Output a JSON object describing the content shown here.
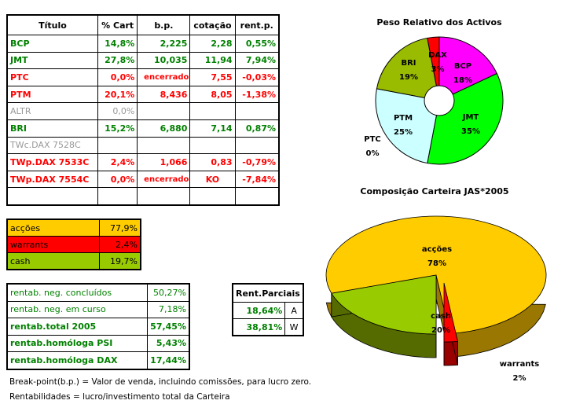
{
  "holdings": {
    "headers": [
      "Título",
      "% Cart",
      "b.p.",
      "cotação",
      "rent.p."
    ],
    "rows": [
      {
        "t": "BCP",
        "p": "14,8%",
        "bp": "2,225",
        "c": "2,28",
        "r": "0,55%",
        "color": "g"
      },
      {
        "t": "JMT",
        "p": "27,8%",
        "bp": "10,035",
        "c": "11,94",
        "r": "7,94%",
        "color": "g"
      },
      {
        "t": "PTC",
        "p": "0,0%",
        "bp": "encerrado",
        "c": "7,55",
        "r": "-0,03%",
        "color": "red"
      },
      {
        "t": "PTM",
        "p": "20,1%",
        "bp": "8,436",
        "c": "8,05",
        "r": "-1,38%",
        "color": "red"
      },
      {
        "t": "ALTR",
        "p": "0,0%",
        "bp": "",
        "c": "",
        "r": "",
        "color": "gr"
      },
      {
        "t": "BRI",
        "p": "15,2%",
        "bp": "6,880",
        "c": "7,14",
        "r": "0,87%",
        "color": "g"
      },
      {
        "t": "TWc.DAX 7528C",
        "p": "",
        "bp": "",
        "c": "",
        "r": "",
        "color": "gr"
      },
      {
        "t": "TWp.DAX 7533C",
        "p": "2,4%",
        "bp": "1,066",
        "c": "0,83",
        "r": "-0,79%",
        "color": "red"
      },
      {
        "t": "TWp.DAX 7554C",
        "p": "0,0%",
        "bp": "encerrado",
        "c": "KO",
        "r": "-7,84%",
        "color": "red"
      },
      {
        "t": "",
        "p": "",
        "bp": "",
        "c": "",
        "r": "",
        "color": "g"
      }
    ]
  },
  "allocation": [
    {
      "label": "acções",
      "value": "77,9%",
      "bg": "#ffcc00"
    },
    {
      "label": "warrants",
      "value": "2,4%",
      "bg": "#ff0000"
    },
    {
      "label": "cash",
      "value": "19,7%",
      "bg": "#99cc00"
    }
  ],
  "returns": [
    {
      "label": "rentab. neg. concluídos",
      "value": "50,27%",
      "bold": false
    },
    {
      "label": "rentab. neg. em curso",
      "value": "7,18%",
      "bold": false
    },
    {
      "label": "rentab.total 2005",
      "value": "57,45%",
      "bold": true
    },
    {
      "label": "rentab.homóloga PSI",
      "value": "5,43%",
      "bold": true
    },
    {
      "label": "rentab.homóloga DAX",
      "value": "17,44%",
      "bold": true
    }
  ],
  "partial": {
    "title": "Rent.Parciais",
    "rows": [
      {
        "value": "18,64%",
        "tag": "A"
      },
      {
        "value": "38,81%",
        "tag": "W"
      }
    ]
  },
  "notes": [
    "Break-point(b.p.) = Valor de venda, incluindo comissões, para lucro zero.",
    "Rentabilidades = lucro/investimento total da Carteira"
  ],
  "chart_data": [
    {
      "type": "pie",
      "style": "doughnut",
      "title": "Peso Relativo dos Activos",
      "categories": [
        "BCP",
        "JMT",
        "PTC",
        "PTM",
        "BRI",
        "DAX"
      ],
      "values": [
        18,
        35,
        0,
        25,
        19,
        3
      ],
      "labels": [
        "18%",
        "35%",
        "0%",
        "25%",
        "19%",
        "3%"
      ],
      "colors": [
        "#ff00ff",
        "#00ff00",
        "#ffffff",
        "#ccffff",
        "#99bb00",
        "#ff0000"
      ]
    },
    {
      "type": "pie",
      "style": "3d",
      "title": "Composição Carteira JAS*2005",
      "categories": [
        "acções",
        "warrants",
        "cash"
      ],
      "values": [
        78,
        2,
        20
      ],
      "labels": [
        "78%",
        "2%",
        "20%"
      ],
      "colors": [
        "#ffcc00",
        "#ff0000",
        "#99cc00"
      ]
    }
  ]
}
